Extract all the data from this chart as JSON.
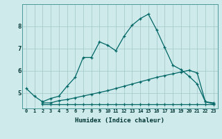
{
  "xlabel": "Humidex (Indice chaleur)",
  "background_color": "#ceeaea",
  "grid_color": "#aacccc",
  "line_color": "#006666",
  "xlim": [
    -0.5,
    23.5
  ],
  "ylim": [
    4.3,
    9.0
  ],
  "xtick_labels": [
    "0",
    "1",
    "2",
    "3",
    "4",
    "5",
    "6",
    "7",
    "8",
    "9",
    "10",
    "11",
    "12",
    "13",
    "14",
    "15",
    "16",
    "17",
    "18",
    "19",
    "20",
    "21",
    "22",
    "23"
  ],
  "xtick_pos": [
    0,
    1,
    2,
    3,
    4,
    5,
    6,
    7,
    8,
    9,
    10,
    11,
    12,
    13,
    14,
    15,
    16,
    17,
    18,
    19,
    20,
    21,
    22,
    23
  ],
  "ytick_pos": [
    5,
    6,
    7,
    8
  ],
  "line1_x": [
    0,
    1,
    2,
    3,
    4,
    5,
    6,
    7,
    8,
    9,
    10,
    11,
    12,
    13,
    14,
    15,
    16,
    17,
    18,
    19,
    20,
    21,
    22,
    23
  ],
  "line1_y": [
    5.2,
    4.85,
    4.6,
    4.75,
    4.85,
    5.3,
    5.7,
    6.6,
    6.6,
    7.3,
    7.15,
    6.9,
    7.55,
    8.05,
    8.35,
    8.55,
    7.85,
    7.05,
    6.25,
    6.05,
    5.75,
    5.4,
    4.6,
    4.55
  ],
  "line2_x": [
    2,
    3,
    4,
    5,
    6,
    7,
    8,
    9,
    10,
    11,
    12,
    13,
    14,
    15,
    16,
    17,
    18,
    19,
    20,
    21,
    22,
    23
  ],
  "line2_y": [
    4.55,
    4.55,
    4.65,
    4.7,
    4.78,
    4.86,
    4.94,
    5.02,
    5.1,
    5.2,
    5.3,
    5.4,
    5.5,
    5.6,
    5.7,
    5.78,
    5.86,
    5.94,
    6.02,
    5.9,
    4.6,
    4.5
  ],
  "line3_x": [
    2,
    3,
    4,
    5,
    6,
    7,
    8,
    9,
    10,
    11,
    12,
    13,
    14,
    15,
    16,
    17,
    18,
    19,
    20,
    21,
    22,
    23
  ],
  "line3_y": [
    4.5,
    4.5,
    4.5,
    4.5,
    4.5,
    4.5,
    4.5,
    4.5,
    4.5,
    4.5,
    4.5,
    4.5,
    4.5,
    4.5,
    4.5,
    4.5,
    4.5,
    4.5,
    4.5,
    4.5,
    4.5,
    4.5
  ]
}
